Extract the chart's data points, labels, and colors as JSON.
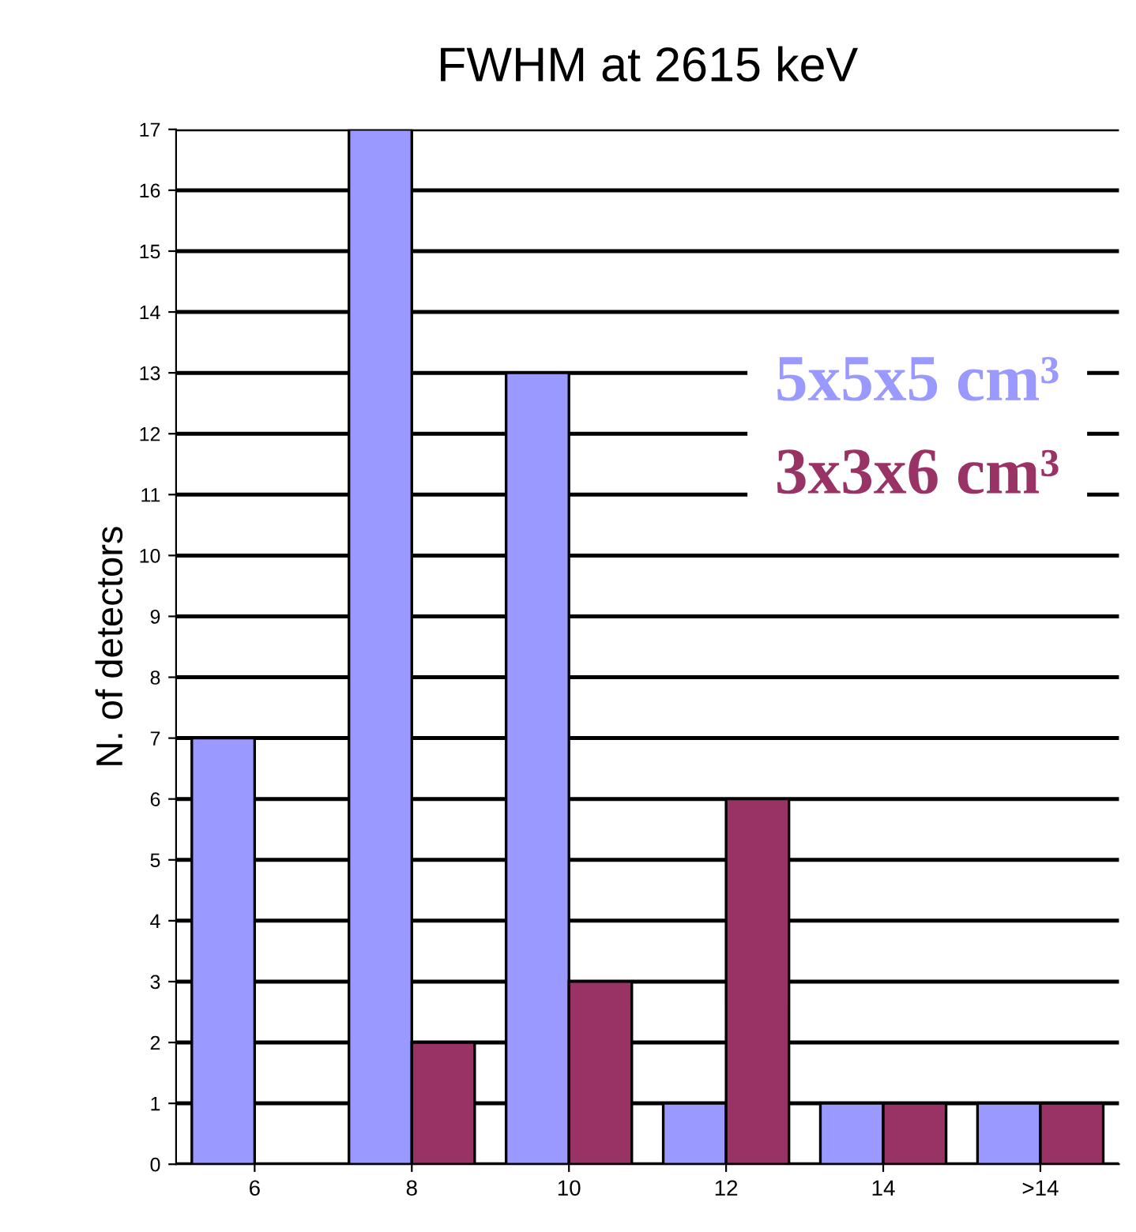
{
  "chart_data": {
    "type": "bar",
    "title": "FWHM at 2615 keV",
    "ylabel": "N. of detectors",
    "categories": [
      "6",
      "8",
      "10",
      "12",
      "14",
      ">14"
    ],
    "series": [
      {
        "name": "5x5x5 cm³",
        "color": "#9999ff",
        "values": [
          7,
          17,
          13,
          1,
          1,
          1
        ]
      },
      {
        "name": "3x3x6 cm³",
        "color": "#993366",
        "values": [
          null,
          2,
          3,
          6,
          1,
          1
        ]
      }
    ],
    "ylim": [
      0,
      17
    ],
    "yticks": [
      0,
      1,
      2,
      3,
      4,
      5,
      6,
      7,
      8,
      9,
      10,
      11,
      12,
      13,
      14,
      15,
      16,
      17
    ],
    "grid": "y",
    "legend": "top right"
  }
}
